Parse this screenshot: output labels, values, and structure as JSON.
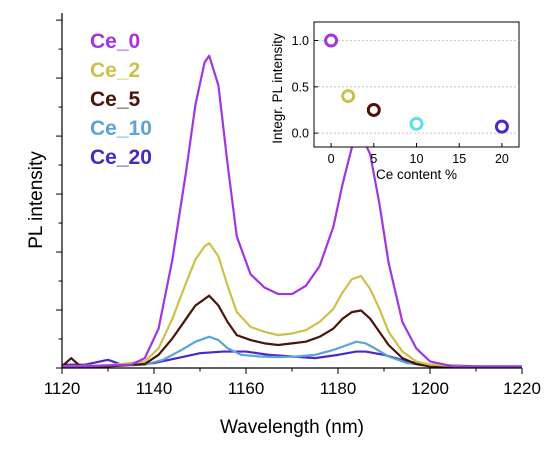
{
  "chart_data": [
    {
      "type": "line",
      "xlabel": "Wavelength (nm)",
      "ylabel": "PL intensity",
      "xlim": [
        1120,
        1220
      ],
      "ylim": [
        0,
        1.08
      ],
      "xticks": [
        1120,
        1140,
        1160,
        1180,
        1200,
        1220
      ],
      "yticks_labels": "none",
      "legend_position": "top-left",
      "series": [
        {
          "name": "Ce_0",
          "color": "#A335E0",
          "x": [
            1120,
            1125,
            1130,
            1135,
            1138,
            1141,
            1144,
            1147,
            1149,
            1151,
            1152,
            1154,
            1156,
            1158,
            1161,
            1164,
            1167,
            1170,
            1173,
            1176,
            1179,
            1181,
            1183,
            1185,
            1187,
            1189,
            1191,
            1194,
            1197,
            1200,
            1205,
            1210,
            1215,
            1220
          ],
          "y": [
            0.005,
            0.005,
            0.008,
            0.01,
            0.03,
            0.12,
            0.33,
            0.6,
            0.8,
            0.93,
            0.95,
            0.86,
            0.62,
            0.4,
            0.285,
            0.245,
            0.225,
            0.225,
            0.25,
            0.31,
            0.43,
            0.56,
            0.67,
            0.71,
            0.65,
            0.5,
            0.32,
            0.14,
            0.06,
            0.02,
            0.005,
            0.003,
            0.003,
            0.003
          ]
        },
        {
          "name": "Ce_2",
          "color": "#CFC04A",
          "x": [
            1120,
            1130,
            1138,
            1141,
            1144,
            1147,
            1149,
            1151,
            1152,
            1154,
            1156,
            1158,
            1161,
            1164,
            1167,
            1170,
            1173,
            1176,
            1179,
            1181,
            1183,
            1185,
            1187,
            1189,
            1191,
            1194,
            1197,
            1200,
            1210,
            1220
          ],
          "y": [
            0.005,
            0.008,
            0.02,
            0.06,
            0.15,
            0.26,
            0.33,
            0.37,
            0.38,
            0.34,
            0.25,
            0.17,
            0.125,
            0.11,
            0.1,
            0.105,
            0.115,
            0.14,
            0.18,
            0.23,
            0.27,
            0.28,
            0.24,
            0.18,
            0.11,
            0.05,
            0.02,
            0.01,
            0.003,
            0.003
          ]
        },
        {
          "name": "Ce_5",
          "color": "#4A1508",
          "x": [
            1120,
            1122,
            1124,
            1130,
            1138,
            1141,
            1144,
            1147,
            1149,
            1151,
            1152,
            1154,
            1156,
            1158,
            1161,
            1164,
            1167,
            1170,
            1173,
            1176,
            1179,
            1181,
            1183,
            1185,
            1187,
            1189,
            1191,
            1194,
            1197,
            1200,
            1210,
            1220
          ],
          "y": [
            0.005,
            0.03,
            0.005,
            0.005,
            0.012,
            0.04,
            0.09,
            0.15,
            0.19,
            0.21,
            0.22,
            0.19,
            0.14,
            0.1,
            0.085,
            0.075,
            0.07,
            0.075,
            0.08,
            0.095,
            0.12,
            0.15,
            0.17,
            0.175,
            0.15,
            0.11,
            0.07,
            0.03,
            0.012,
            0.005,
            0.003,
            0.003
          ]
        },
        {
          "name": "Ce_10",
          "color": "#5BA4D8",
          "x": [
            1120,
            1130,
            1138,
            1142,
            1146,
            1149,
            1151,
            1152,
            1154,
            1156,
            1159,
            1163,
            1167,
            1171,
            1175,
            1179,
            1182,
            1184,
            1186,
            1188,
            1191,
            1195,
            1200,
            1210,
            1220
          ],
          "y": [
            0.005,
            0.006,
            0.01,
            0.025,
            0.055,
            0.08,
            0.09,
            0.095,
            0.085,
            0.06,
            0.04,
            0.035,
            0.033,
            0.035,
            0.04,
            0.055,
            0.07,
            0.08,
            0.075,
            0.06,
            0.035,
            0.015,
            0.006,
            0.003,
            0.003
          ]
        },
        {
          "name": "Ce_20",
          "color": "#4A28C8",
          "x": [
            1120,
            1125,
            1130,
            1133,
            1136,
            1140,
            1145,
            1150,
            1155,
            1160,
            1165,
            1170,
            1175,
            1180,
            1184,
            1186,
            1190,
            1195,
            1200,
            1210,
            1220
          ],
          "y": [
            0.01,
            0.01,
            0.025,
            0.01,
            0.01,
            0.015,
            0.03,
            0.045,
            0.05,
            0.05,
            0.04,
            0.035,
            0.03,
            0.04,
            0.05,
            0.05,
            0.04,
            0.02,
            0.01,
            0.005,
            0.005
          ]
        }
      ]
    },
    {
      "type": "scatter",
      "title": "",
      "xlabel": "Ce content %",
      "ylabel": "Integr. PL intensity",
      "xlim": [
        -2,
        22
      ],
      "ylim": [
        -0.15,
        1.2
      ],
      "xticks": [
        0,
        5,
        10,
        15,
        20
      ],
      "yticks": [
        0.0,
        0.5,
        1.0
      ],
      "ytick_labels": [
        "0.0",
        "0.5",
        "1.0"
      ],
      "grid": true,
      "points": [
        {
          "x": 0,
          "y": 1.0,
          "color": "#A335E0"
        },
        {
          "x": 2,
          "y": 0.4,
          "color": "#CFC04A"
        },
        {
          "x": 5,
          "y": 0.25,
          "color": "#4A1508"
        },
        {
          "x": 10,
          "y": 0.1,
          "color": "#5BE0E8"
        },
        {
          "x": 20,
          "y": 0.07,
          "color": "#4A28C8"
        }
      ]
    }
  ]
}
